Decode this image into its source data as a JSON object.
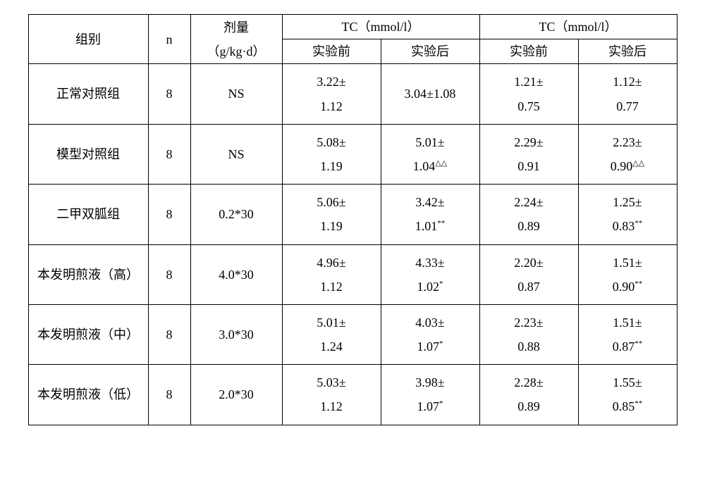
{
  "table": {
    "columns": {
      "group": "组别",
      "n": "n",
      "dose_line1": "剂量",
      "dose_line2": "（g/kg·d）",
      "tc1_header": "TC（mmol/l）",
      "tc2_header": "TC（mmol/l）",
      "before": "实验前",
      "after": "实验后"
    },
    "rows": [
      {
        "group": "正常对照组",
        "n": "8",
        "dose": "NS",
        "tc1b_l1": "3.22±",
        "tc1b_l2": "1.12",
        "tc1a_single": "3.04±1.08",
        "tc2b_l1": "1.21±",
        "tc2b_l2": "0.75",
        "tc2a_l1": "1.12±",
        "tc2a_l2": "0.77",
        "tc2a_sup": ""
      },
      {
        "group": "模型对照组",
        "n": "8",
        "dose": "NS",
        "tc1b_l1": "5.08±",
        "tc1b_l2": "1.19",
        "tc1a_l1": "5.01±",
        "tc1a_l2": "1.04",
        "tc1a_sup": "△△",
        "tc2b_l1": "2.29±",
        "tc2b_l2": "0.91",
        "tc2a_l1": "2.23±",
        "tc2a_l2": "0.90",
        "tc2a_sup": "△△"
      },
      {
        "group": "二甲双胍组",
        "n": "8",
        "dose": "0.2*30",
        "tc1b_l1": "5.06±",
        "tc1b_l2": "1.19",
        "tc1a_l1": "3.42±",
        "tc1a_l2": "1.01",
        "tc1a_sup": "**",
        "tc2b_l1": "2.24±",
        "tc2b_l2": "0.89",
        "tc2a_l1": "1.25±",
        "tc2a_l2": "0.83",
        "tc2a_sup": "**"
      },
      {
        "group": "本发明煎液（高）",
        "n": "8",
        "dose": "4.0*30",
        "tc1b_l1": "4.96±",
        "tc1b_l2": "1.12",
        "tc1a_l1": "4.33±",
        "tc1a_l2": "1.02",
        "tc1a_sup": "*",
        "tc2b_l1": "2.20±",
        "tc2b_l2": "0.87",
        "tc2a_l1": "1.51±",
        "tc2a_l2": "0.90",
        "tc2a_sup": "**"
      },
      {
        "group": "本发明煎液（中）",
        "n": "8",
        "dose": "3.0*30",
        "tc1b_l1": "5.01±",
        "tc1b_l2": "1.24",
        "tc1a_l1": "4.03±",
        "tc1a_l2": "1.07",
        "tc1a_sup": "*",
        "tc2b_l1": "2.23±",
        "tc2b_l2": "0.88",
        "tc2a_l1": "1.51±",
        "tc2a_l2": "0.87",
        "tc2a_sup": "**"
      },
      {
        "group": "本发明煎液（低）",
        "n": "8",
        "dose": "2.0*30",
        "tc1b_l1": "5.03±",
        "tc1b_l2": "1.12",
        "tc1a_l1": "3.98±",
        "tc1a_l2": "1.07",
        "tc1a_sup": "*",
        "tc2b_l1": "2.28±",
        "tc2b_l2": "0.89",
        "tc2a_l1": "1.55±",
        "tc2a_l2": "0.85",
        "tc2a_sup": "**"
      }
    ],
    "style": {
      "border_color": "#000000",
      "background": "#ffffff",
      "font_family": "SimSun",
      "header_fontsize_pt": 14,
      "cell_fontsize_pt": 14,
      "sup_fontsize_pt": 8
    }
  }
}
